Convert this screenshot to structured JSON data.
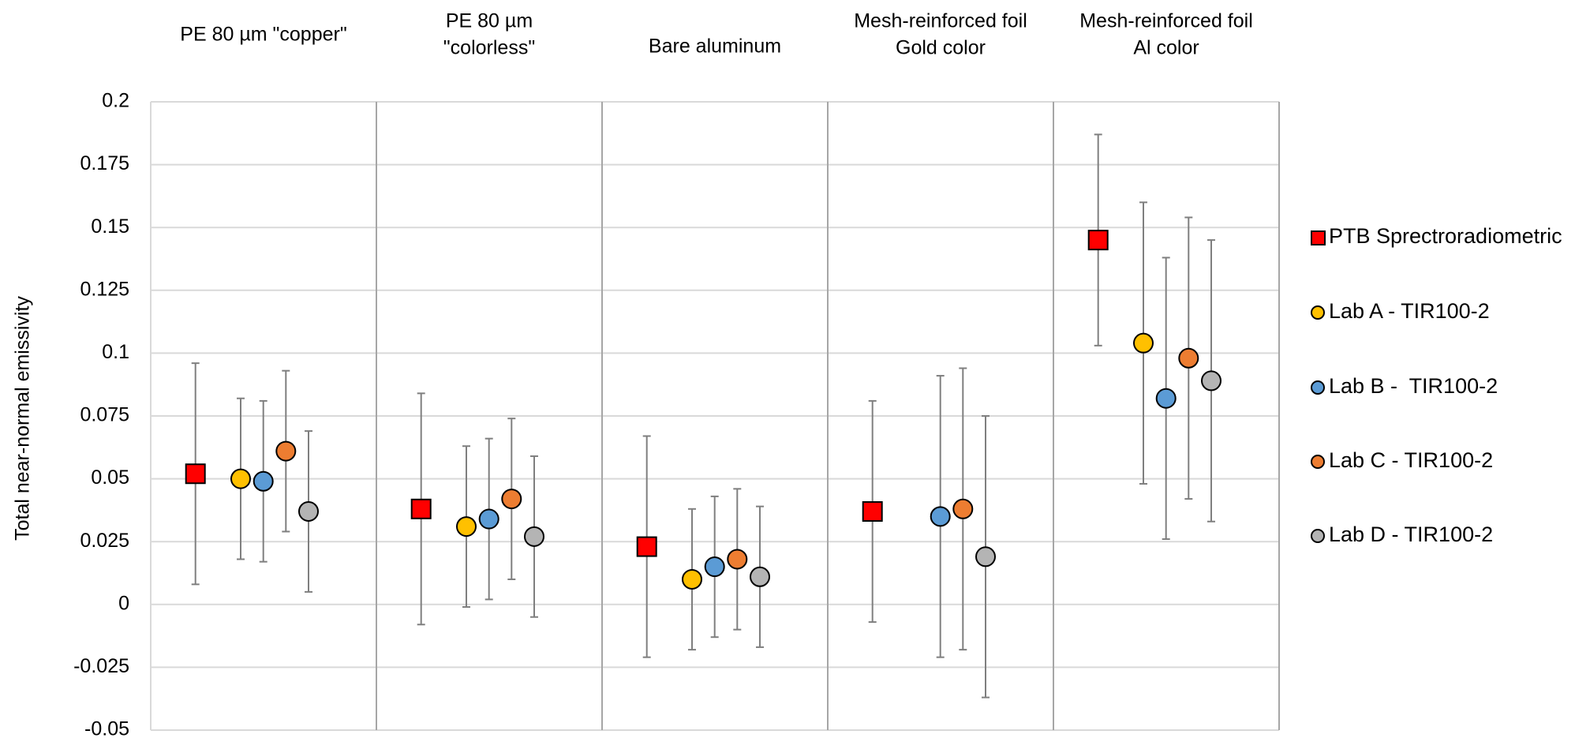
{
  "chart_data": {
    "type": "scatter",
    "title": "",
    "xlabel": "",
    "ylabel": "Total near-normal emissivity",
    "ylim": [
      -0.05,
      0.2
    ],
    "yticks": [
      -0.05,
      -0.025,
      0,
      0.025,
      0.05,
      0.075,
      0.1,
      0.125,
      0.15,
      0.175,
      0.2
    ],
    "ytick_labels": [
      "-0.05",
      "-0.025",
      "0",
      "0.025",
      "0.05",
      "0.075",
      "0.1",
      "0.125",
      "0.15",
      "0.175",
      "0.2"
    ],
    "grid": true,
    "legend_position": "right",
    "categories": [
      [
        "PE 80 µm \"copper\""
      ],
      [
        "PE 80 µm",
        "\"colorless\""
      ],
      [
        "Bare aluminum"
      ],
      [
        "Mesh-reinforced foil",
        "Gold color"
      ],
      [
        "Mesh-reinforced foil",
        "Al color"
      ]
    ],
    "series": [
      {
        "name": "PTB Sprectroradiometric",
        "marker": "square",
        "color": "#ff0000",
        "values": [
          0.052,
          0.038,
          0.023,
          0.037,
          0.145
        ],
        "err_low": [
          0.008,
          -0.008,
          -0.021,
          -0.007,
          0.103
        ],
        "err_high": [
          0.096,
          0.084,
          0.067,
          0.081,
          0.187
        ]
      },
      {
        "name": "Lab A - TIR100-2",
        "marker": "circle",
        "color": "#ffc000",
        "values": [
          0.05,
          0.031,
          0.01,
          null,
          0.104
        ],
        "err_low": [
          0.018,
          -0.001,
          -0.018,
          null,
          0.048
        ],
        "err_high": [
          0.082,
          0.063,
          0.038,
          null,
          0.16
        ]
      },
      {
        "name": "Lab B -  TIR100-2",
        "marker": "circle",
        "color": "#5b9bd5",
        "values": [
          0.049,
          0.034,
          0.015,
          0.035,
          0.082
        ],
        "err_low": [
          0.017,
          0.002,
          -0.013,
          -0.021,
          0.026
        ],
        "err_high": [
          0.081,
          0.066,
          0.043,
          0.091,
          0.138
        ]
      },
      {
        "name": "Lab C - TIR100-2",
        "marker": "circle",
        "color": "#ed7d31",
        "values": [
          0.061,
          0.042,
          0.018,
          0.038,
          0.098
        ],
        "err_low": [
          0.029,
          0.01,
          -0.01,
          -0.018,
          0.042
        ],
        "err_high": [
          0.093,
          0.074,
          0.046,
          0.094,
          0.154
        ]
      },
      {
        "name": "Lab D - TIR100-2",
        "marker": "circle",
        "color": "#b4b4b4",
        "values": [
          0.037,
          0.027,
          0.011,
          0.019,
          0.089
        ],
        "err_low": [
          0.005,
          -0.005,
          -0.017,
          -0.037,
          0.033
        ],
        "err_high": [
          0.069,
          0.059,
          0.039,
          0.075,
          0.145
        ]
      }
    ]
  }
}
